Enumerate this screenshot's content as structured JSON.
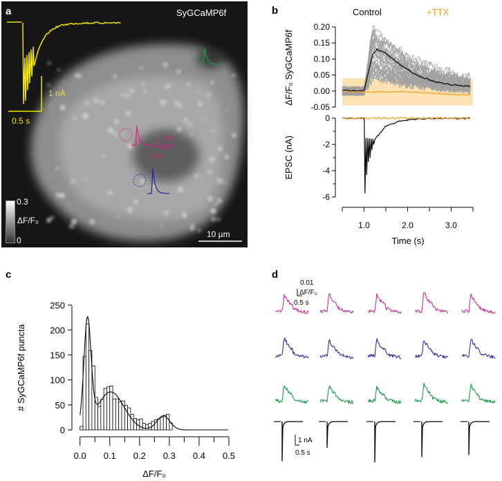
{
  "panel_a": {
    "label": "a",
    "title": "SyGCaMP6f",
    "current_scale_y": "1 nA",
    "current_scale_x": "0.5 s",
    "df_scale_y_value": "0.1",
    "df_scale_y_unit": "ΔF/F₀",
    "df_scale_x": "0.5 s",
    "colorbar_max": "0.3",
    "colorbar_min": "0",
    "colorbar_label": "ΔF/F₀",
    "scalebar": "10 µm",
    "colors": {
      "epsc": "#f2e400",
      "roi1": "#1e9a55",
      "roi2": "#e2208c",
      "roi3": "#2a2aa0"
    }
  },
  "chart_data": [
    {
      "panel": "b",
      "label": "b",
      "type": "line",
      "legend": [
        {
          "name": "Control",
          "color": "#000000"
        },
        {
          "name": "+TTX",
          "color": "#f5a020"
        }
      ],
      "xlabel": "Time (s)",
      "xlim": [
        0.5,
        3.5
      ],
      "xticks": [
        0.5,
        1.0,
        1.5,
        2.0,
        2.5,
        3.0,
        3.5
      ],
      "xticklabels": [
        "1.0",
        "2.0",
        "3.0"
      ],
      "top": {
        "ylabel": "ΔF/F₀ SyGCaMP6f",
        "ylim": [
          -0.05,
          0.2
        ],
        "yticklabels": [
          "0.20",
          "0.15",
          "0.10",
          "0.05",
          "0.00",
          "-0.05"
        ],
        "control_mean": {
          "t": [
            0.5,
            0.9,
            1.0,
            1.1,
            1.2,
            1.3,
            1.5,
            1.8,
            2.2,
            2.6,
            3.0,
            3.5
          ],
          "y": [
            0.002,
            0.0,
            0.002,
            0.06,
            0.115,
            0.13,
            0.118,
            0.085,
            0.05,
            0.03,
            0.02,
            0.014
          ]
        },
        "control_individual_count": 40,
        "control_individual_peak_range": [
          0.01,
          0.2
        ],
        "ttx_mean": {
          "t": [
            0.5,
            1.0,
            2.0,
            3.0,
            3.5
          ],
          "y": [
            0.0,
            -0.003,
            -0.002,
            -0.01,
            -0.012
          ]
        },
        "ttx_band": [
          -0.045,
          0.04
        ]
      },
      "bottom": {
        "ylabel": "EPSC (nA)",
        "ylim": [
          -6,
          0
        ],
        "yticklabels": [
          "0",
          "-2",
          "-4",
          "-6"
        ],
        "control_peaks": {
          "t": [
            1.02,
            1.06,
            1.1,
            1.14,
            1.18,
            1.22
          ],
          "y": [
            -5.7,
            -4.3,
            -3.3,
            -3.0,
            -2.4,
            -2.0
          ]
        },
        "control_recovery": {
          "t": [
            1.25,
            1.5,
            1.8,
            2.2,
            3.5
          ],
          "y": [
            -1.6,
            -0.6,
            -0.25,
            -0.05,
            0.0
          ]
        },
        "ttx_level": 0.0
      }
    },
    {
      "panel": "c",
      "label": "c",
      "type": "bar",
      "xlabel": "ΔF/F₀",
      "ylabel": "# SyGCaMP6f puncta",
      "xlim": [
        0,
        0.5
      ],
      "ylim": [
        0,
        250
      ],
      "xticklabels": [
        "0.0",
        "0.1",
        "0.2",
        "0.3",
        "0.4",
        "0.5"
      ],
      "yticklabels": [
        "250",
        "200",
        "150",
        "100",
        "50",
        "0"
      ],
      "bin_width": 0.01,
      "bin_starts": [
        0.0,
        0.01,
        0.02,
        0.03,
        0.04,
        0.05,
        0.06,
        0.07,
        0.08,
        0.09,
        0.1,
        0.11,
        0.12,
        0.13,
        0.14,
        0.15,
        0.16,
        0.17,
        0.18,
        0.19,
        0.2,
        0.21,
        0.22,
        0.23,
        0.24,
        0.25,
        0.26,
        0.27,
        0.28,
        0.29,
        0.3
      ],
      "values": [
        7,
        147,
        212,
        159,
        128,
        65,
        47,
        61,
        83,
        86,
        88,
        62,
        62,
        56,
        58,
        49,
        44,
        31,
        23,
        20,
        22,
        13,
        10,
        13,
        17,
        20,
        22,
        25,
        29,
        31,
        14
      ],
      "fit_gaussians": [
        {
          "amp": 210,
          "mu": 0.025,
          "sigma": 0.012
        },
        {
          "amp": 76,
          "mu": 0.103,
          "sigma": 0.045
        },
        {
          "amp": 28,
          "mu": 0.28,
          "sigma": 0.022
        }
      ]
    },
    {
      "panel": "d",
      "label": "d",
      "type": "line",
      "df_scale_y_value": "0.01",
      "df_scale_y_unit": "ΔF/F₀",
      "df_scale_x": "0.5 s",
      "epsc_scale_y": "1 nA",
      "epsc_scale_x": "0.5 s",
      "trials": 5,
      "rows": [
        {
          "name": "roi-magenta",
          "color": "#c4309c"
        },
        {
          "name": "roi-blue",
          "color": "#2e2e96"
        },
        {
          "name": "roi-green",
          "color": "#1a9a45"
        },
        {
          "name": "epsc",
          "color": "#000000"
        }
      ],
      "epsc_peaks_nA": [
        -3.8,
        -2.5,
        -3.9,
        -3.4,
        -3.2
      ]
    }
  ]
}
